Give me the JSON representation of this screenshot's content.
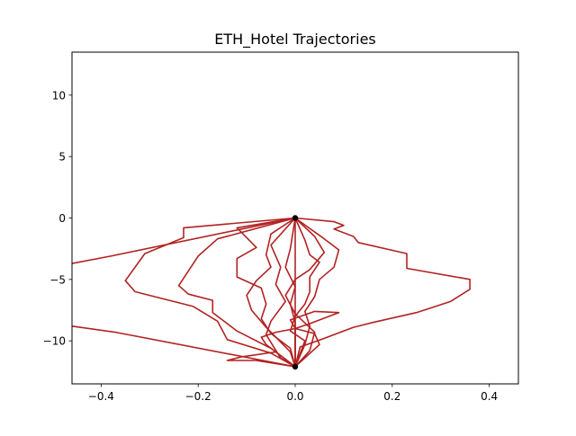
{
  "chart_data": {
    "type": "line",
    "title": "ETH_Hotel Trajectories",
    "xlabel": "",
    "ylabel": "",
    "xlim": [
      -0.46,
      0.46
    ],
    "ylim": [
      -13.5,
      13.5
    ],
    "xticks": [
      -0.4,
      -0.2,
      0.0,
      0.2,
      0.4
    ],
    "xtick_labels": [
      "−0.4",
      "−0.2",
      "0.0",
      "0.2",
      "0.4"
    ],
    "yticks": [
      10,
      5,
      0,
      -5,
      -10
    ],
    "ytick_labels": [
      "10",
      "5",
      "0",
      "−5",
      "−10"
    ],
    "grid": false,
    "line_color": "#b22222",
    "marker_color": "#000000",
    "endpoints": [
      {
        "x": 0.0,
        "y": 0.0
      },
      {
        "x": 0.0,
        "y": -12.1
      }
    ],
    "series": [
      {
        "points": [
          [
            0.0,
            0.0
          ],
          [
            0.08,
            -0.3
          ],
          [
            0.1,
            -0.6
          ],
          [
            0.08,
            -0.9
          ],
          [
            0.12,
            -1.5
          ],
          [
            0.13,
            -2.0
          ],
          [
            0.23,
            -2.9
          ],
          [
            0.23,
            -4.1
          ],
          [
            0.36,
            -5.0
          ],
          [
            0.36,
            -5.8
          ],
          [
            0.32,
            -6.8
          ],
          [
            0.25,
            -7.7
          ],
          [
            0.16,
            -8.5
          ],
          [
            0.12,
            -8.9
          ],
          [
            0.06,
            -9.8
          ],
          [
            0.01,
            -10.5
          ],
          [
            0.0,
            -12.1
          ]
        ]
      },
      {
        "points": [
          [
            0.0,
            0.0
          ],
          [
            -0.23,
            -0.8
          ],
          [
            -0.23,
            -1.6
          ],
          [
            -0.31,
            -2.9
          ],
          [
            -0.35,
            -5.1
          ],
          [
            -0.33,
            -6.0
          ],
          [
            -0.21,
            -7.2
          ],
          [
            -0.16,
            -8.4
          ],
          [
            -0.14,
            -9.9
          ],
          [
            -0.05,
            -11.0
          ],
          [
            0.0,
            -12.1
          ]
        ]
      },
      {
        "points": [
          [
            0.0,
            0.0
          ],
          [
            -0.38,
            -3.1
          ],
          [
            -0.46,
            -3.7
          ]
        ]
      },
      {
        "points": [
          [
            0.0,
            -12.1
          ],
          [
            -0.37,
            -9.3
          ],
          [
            -0.46,
            -8.8
          ]
        ]
      },
      {
        "points": [
          [
            0.0,
            0.0
          ],
          [
            -0.16,
            -1.7
          ],
          [
            -0.2,
            -3.1
          ],
          [
            -0.24,
            -5.5
          ],
          [
            -0.22,
            -6.2
          ],
          [
            -0.17,
            -6.7
          ],
          [
            -0.17,
            -7.7
          ],
          [
            -0.12,
            -9.2
          ],
          [
            -0.05,
            -10.6
          ],
          [
            0.0,
            -12.1
          ]
        ]
      },
      {
        "points": [
          [
            0.0,
            0.0
          ],
          [
            -0.12,
            -0.8
          ],
          [
            -0.08,
            -2.4
          ],
          [
            -0.12,
            -3.3
          ],
          [
            -0.12,
            -4.8
          ],
          [
            -0.07,
            -5.7
          ],
          [
            -0.06,
            -7.0
          ],
          [
            -0.07,
            -8.2
          ],
          [
            -0.05,
            -9.4
          ],
          [
            -0.01,
            -10.6
          ],
          [
            0.0,
            -12.1
          ]
        ]
      },
      {
        "points": [
          [
            0.0,
            0.0
          ],
          [
            -0.05,
            -1.3
          ],
          [
            -0.06,
            -3.0
          ],
          [
            -0.05,
            -4.0
          ],
          [
            -0.08,
            -5.1
          ],
          [
            -0.1,
            -6.3
          ],
          [
            -0.09,
            -7.5
          ],
          [
            -0.06,
            -8.9
          ],
          [
            -0.01,
            -10.9
          ],
          [
            0.0,
            -12.1
          ]
        ]
      },
      {
        "points": [
          [
            0.0,
            0.0
          ],
          [
            0.02,
            -1.8
          ],
          [
            0.03,
            -3.0
          ],
          [
            0.05,
            -3.6
          ],
          [
            0.03,
            -4.8
          ],
          [
            0.03,
            -6.0
          ],
          [
            0.02,
            -7.0
          ],
          [
            0.0,
            -8.0
          ],
          [
            -0.01,
            -9.2
          ],
          [
            0.02,
            -10.0
          ],
          [
            0.0,
            -12.1
          ]
        ]
      },
      {
        "points": [
          [
            0.0,
            0.0
          ],
          [
            0.06,
            -1.7
          ],
          [
            0.09,
            -2.6
          ],
          [
            0.08,
            -4.0
          ],
          [
            0.05,
            -5.0
          ],
          [
            0.04,
            -6.4
          ],
          [
            0.02,
            -7.6
          ],
          [
            0.03,
            -8.8
          ],
          [
            0.02,
            -10.3
          ],
          [
            0.0,
            -12.1
          ]
        ]
      },
      {
        "points": [
          [
            0.0,
            0.0
          ],
          [
            -0.01,
            -2.5
          ],
          [
            -0.02,
            -4.0
          ],
          [
            0.0,
            -5.6
          ],
          [
            -0.01,
            -7.0
          ],
          [
            0.0,
            -8.5
          ],
          [
            0.0,
            -10.0
          ],
          [
            0.0,
            -12.1
          ]
        ]
      },
      {
        "points": [
          [
            0.0,
            0.0
          ],
          [
            0.0,
            -12.1
          ]
        ]
      },
      {
        "points": [
          [
            0.0,
            -12.1
          ],
          [
            -0.08,
            -11.6
          ],
          [
            -0.14,
            -11.6
          ],
          [
            -0.11,
            -11.3
          ],
          [
            -0.04,
            -10.9
          ],
          [
            0.0,
            -12.1
          ]
        ]
      },
      {
        "points": [
          [
            0.0,
            -12.1
          ],
          [
            -0.06,
            -10.3
          ],
          [
            -0.07,
            -9.7
          ],
          [
            -0.04,
            -9.3
          ],
          [
            0.0,
            -9.0
          ],
          [
            0.04,
            -9.4
          ],
          [
            0.05,
            -10.3
          ],
          [
            0.0,
            -12.1
          ]
        ]
      },
      {
        "points": [
          [
            0.0,
            -12.1
          ],
          [
            0.0,
            -9.0
          ],
          [
            0.03,
            -8.6
          ],
          [
            0.09,
            -7.7
          ],
          [
            0.04,
            -7.6
          ],
          [
            -0.01,
            -8.3
          ],
          [
            0.0,
            -9.0
          ]
        ]
      },
      {
        "points": [
          [
            0.0,
            0.0
          ],
          [
            -0.05,
            -2.2
          ],
          [
            -0.03,
            -4.0
          ],
          [
            -0.04,
            -5.4
          ],
          [
            -0.02,
            -6.8
          ],
          [
            -0.05,
            -8.4
          ],
          [
            -0.06,
            -9.5
          ],
          [
            -0.03,
            -11.4
          ],
          [
            0.0,
            -12.1
          ]
        ]
      },
      {
        "points": [
          [
            0.0,
            0.0
          ],
          [
            0.04,
            -1.5
          ],
          [
            0.06,
            -2.8
          ],
          [
            0.03,
            -4.2
          ],
          [
            0.0,
            -5.0
          ],
          [
            -0.02,
            -6.3
          ],
          [
            0.0,
            -7.8
          ],
          [
            0.04,
            -9.3
          ],
          [
            0.03,
            -10.8
          ],
          [
            0.0,
            -12.1
          ]
        ]
      }
    ]
  }
}
